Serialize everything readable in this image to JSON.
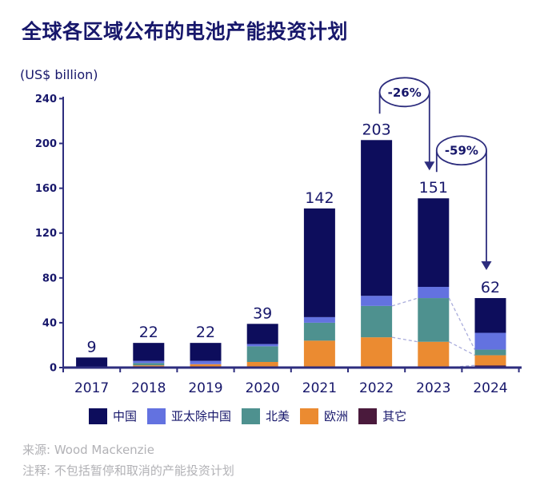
{
  "page": {
    "title": "全球各区域公布的电池产能投资计划",
    "unit_label": "(US$ billion)"
  },
  "chart_data": {
    "type": "bar",
    "stacked": true,
    "title": "全球各区域公布的电池产能投资计划",
    "unit": "US$ billion",
    "categories": [
      "2017",
      "2018",
      "2019",
      "2020",
      "2021",
      "2022",
      "2023",
      "2024"
    ],
    "series": [
      {
        "name": "中国",
        "color": "#0D0D5C",
        "values": [
          9,
          16,
          16,
          18,
          97,
          139,
          79,
          31
        ]
      },
      {
        "name": "亚太除中国",
        "color": "#6372E0",
        "values": [
          0,
          2,
          3,
          2,
          5,
          9,
          10,
          15
        ]
      },
      {
        "name": "北美",
        "color": "#4E918F",
        "values": [
          0,
          2,
          0,
          14,
          16,
          28,
          39,
          5
        ]
      },
      {
        "name": "欧洲",
        "color": "#EB8B31",
        "values": [
          0,
          2,
          3,
          5,
          24,
          27,
          23,
          9
        ]
      },
      {
        "name": "其它",
        "color": "#4A1A3C",
        "values": [
          0,
          0,
          0,
          0,
          0,
          0,
          0,
          2
        ]
      }
    ],
    "stack_order_bottom_to_top": [
      "其它",
      "欧洲",
      "北美",
      "亚太除中国",
      "中国"
    ],
    "totals": [
      9,
      22,
      22,
      39,
      142,
      203,
      151,
      62
    ],
    "ylim": [
      0,
      240
    ],
    "ytick_step": 40,
    "grid": false,
    "legend_position": "bottom",
    "annotations": [
      {
        "label": "-26%",
        "from": "2022",
        "to": "2023"
      },
      {
        "label": "-59%",
        "from": "2023",
        "to": "2024"
      }
    ],
    "connectors": [
      {
        "from": "2022",
        "to": "2023",
        "boundary_after": "欧洲"
      },
      {
        "from": "2022",
        "to": "2023",
        "boundary_after": "北美"
      },
      {
        "from": "2023",
        "to": "2024",
        "boundary_after": "其它"
      },
      {
        "from": "2023",
        "to": "2024",
        "boundary_after": "欧洲"
      },
      {
        "from": "2023",
        "to": "2024",
        "boundary_after": "北美"
      }
    ]
  },
  "footer": {
    "source": "来源: Wood Mackenzie",
    "note": "注释: 不包括暂停和取消的产能投资计划"
  },
  "style": {
    "text_navy": "#17176B",
    "axis_navy": "#2D2D7E",
    "connector": "#A9ACDC",
    "footer_gray": "#B2B2B6",
    "background": "#FFFFFF"
  }
}
